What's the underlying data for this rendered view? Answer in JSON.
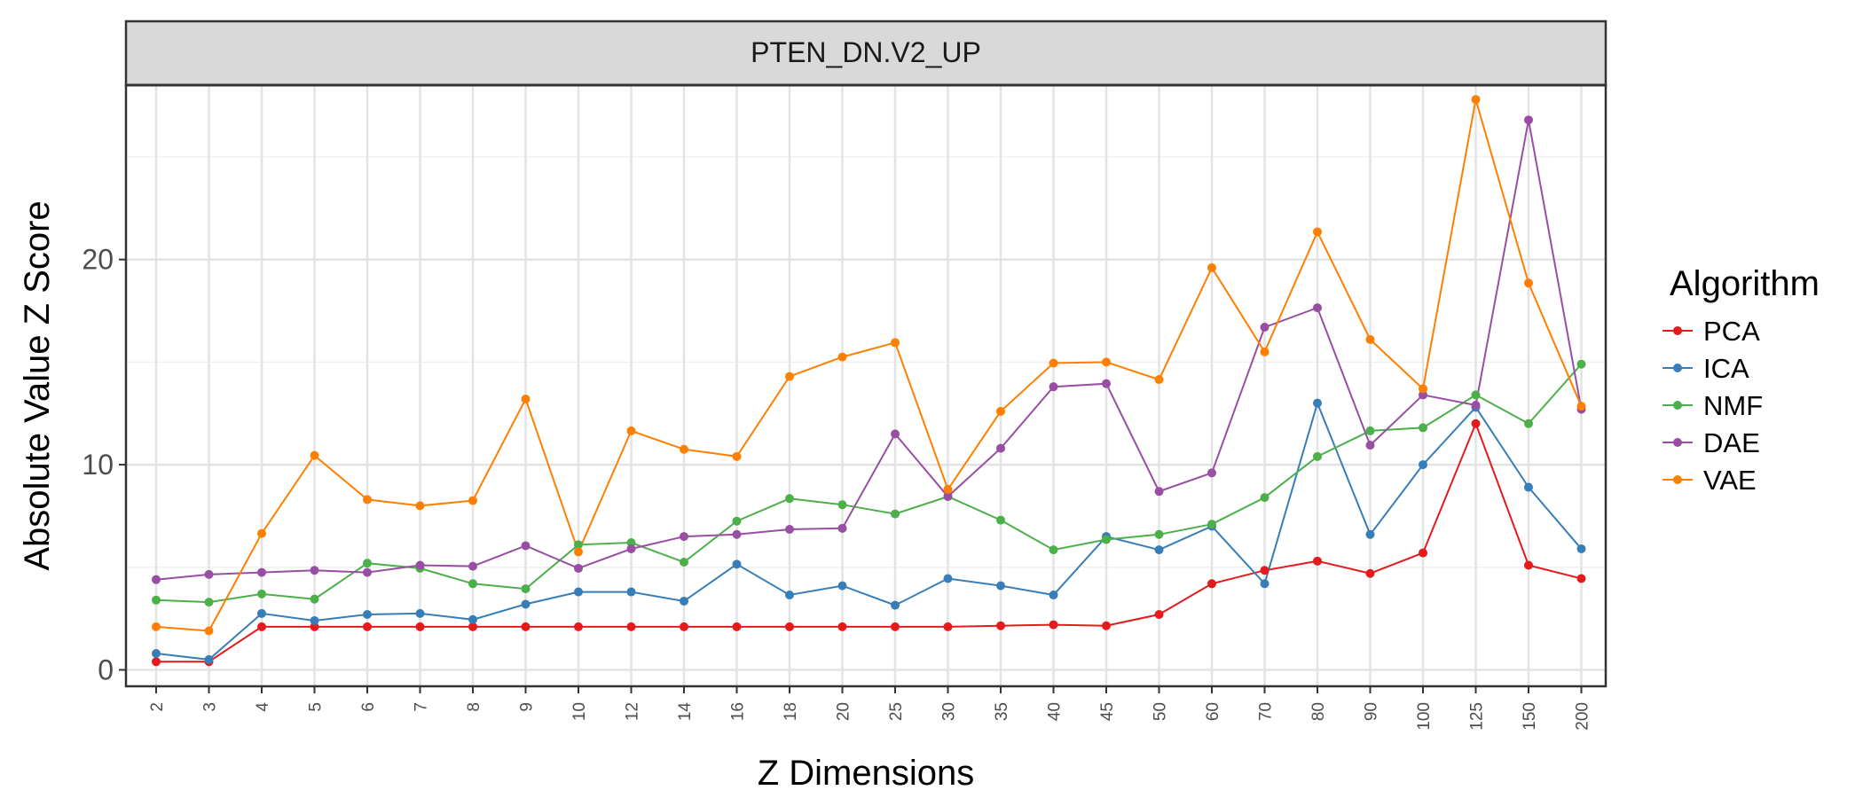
{
  "chart_data": {
    "type": "line",
    "panel_title": "PTEN_DN.V2_UP",
    "xlabel": "Z Dimensions",
    "ylabel": "Absolute Value Z Score",
    "categories": [
      "2",
      "3",
      "4",
      "5",
      "6",
      "7",
      "8",
      "9",
      "10",
      "12",
      "14",
      "16",
      "18",
      "20",
      "25",
      "30",
      "35",
      "40",
      "45",
      "50",
      "60",
      "70",
      "80",
      "90",
      "100",
      "125",
      "150",
      "200"
    ],
    "y_ticks": [
      0,
      10,
      20
    ],
    "ylim": [
      -0.8,
      28.5
    ],
    "grid": true,
    "legend_title": "Algorithm",
    "legend_position": "right",
    "series": [
      {
        "name": "PCA",
        "color": "#e41a1c",
        "values": [
          0.4,
          0.4,
          2.1,
          2.1,
          2.1,
          2.1,
          2.1,
          2.1,
          2.1,
          2.1,
          2.1,
          2.1,
          2.1,
          2.1,
          2.1,
          2.1,
          2.15,
          2.2,
          2.15,
          2.7,
          4.2,
          4.85,
          5.3,
          4.7,
          5.7,
          12.0,
          5.1,
          4.45
        ]
      },
      {
        "name": "ICA",
        "color": "#377eb8",
        "values": [
          0.8,
          0.5,
          2.75,
          2.4,
          2.7,
          2.75,
          2.45,
          3.2,
          3.8,
          3.8,
          3.35,
          5.15,
          3.65,
          4.1,
          3.15,
          4.45,
          4.1,
          3.65,
          6.5,
          5.85,
          7.0,
          4.2,
          13.0,
          6.6,
          10.0,
          12.8,
          8.9,
          5.9
        ]
      },
      {
        "name": "NMF",
        "color": "#4daf4a",
        "values": [
          3.4,
          3.3,
          3.7,
          3.45,
          5.2,
          4.95,
          4.2,
          3.95,
          6.1,
          6.2,
          5.25,
          7.25,
          8.35,
          8.05,
          7.6,
          8.45,
          7.3,
          5.85,
          6.35,
          6.6,
          7.1,
          8.4,
          10.4,
          11.65,
          11.8,
          13.4,
          12.0,
          14.9
        ]
      },
      {
        "name": "DAE",
        "color": "#984ea3",
        "values": [
          4.4,
          4.65,
          4.75,
          4.85,
          4.75,
          5.1,
          5.05,
          6.05,
          4.95,
          5.9,
          6.5,
          6.6,
          6.85,
          6.9,
          11.5,
          8.45,
          10.8,
          13.8,
          13.95,
          8.7,
          9.6,
          16.7,
          17.65,
          10.95,
          13.4,
          12.9,
          26.8,
          12.7
        ]
      },
      {
        "name": "VAE",
        "color": "#ff7f00",
        "values": [
          2.1,
          1.9,
          6.65,
          10.45,
          8.3,
          8.0,
          8.25,
          13.2,
          5.75,
          11.65,
          10.75,
          10.4,
          14.3,
          15.25,
          15.95,
          8.8,
          12.6,
          14.95,
          15.0,
          14.15,
          19.6,
          15.5,
          21.35,
          16.1,
          13.7,
          27.8,
          18.85,
          12.85
        ]
      }
    ]
  }
}
